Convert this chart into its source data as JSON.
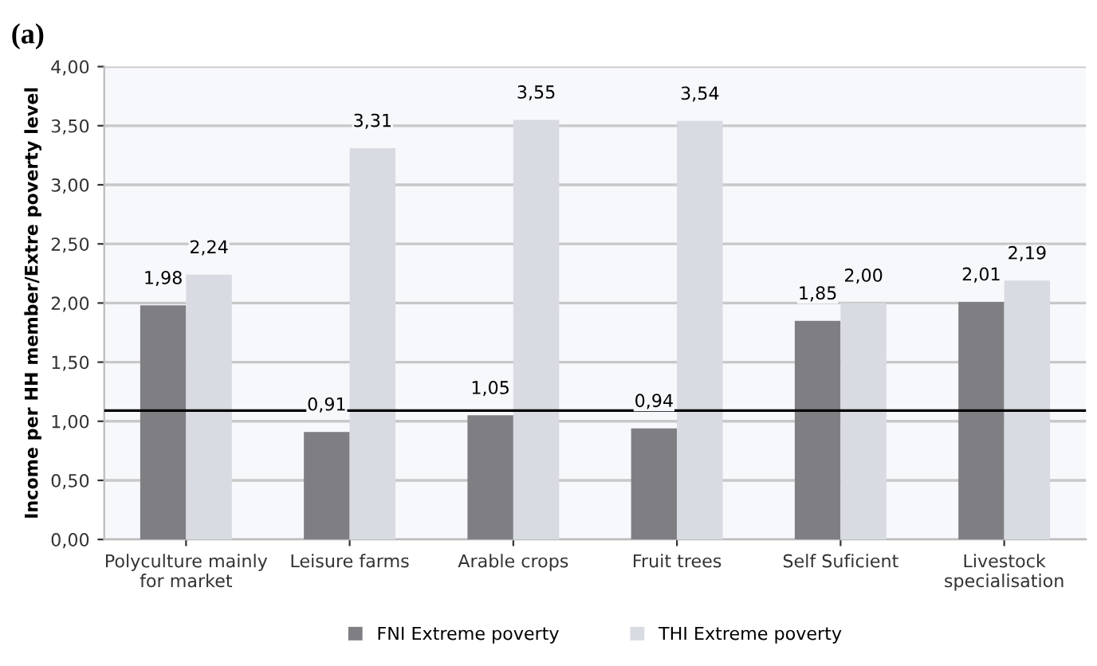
{
  "chart_data": {
    "type": "bar",
    "title": "(a)",
    "ylabel": "Income per HH member/Extre poverty level",
    "categories": [
      "Polyculture mainly\nfor market",
      "Leisure farms",
      "Arable crops",
      "Fruit trees",
      "Self Suficient",
      "Livestock\nspecialisation"
    ],
    "series": [
      {
        "name": "FNI Extreme poverty",
        "color": "#7f7f83",
        "values": [
          1.98,
          0.91,
          1.05,
          0.94,
          1.85,
          2.01
        ],
        "value_labels": [
          "1,98",
          "0,91",
          "1,05",
          "0,94",
          "1,85",
          "2,01"
        ]
      },
      {
        "name": "THI Extreme poverty",
        "color": "#d9dbe2",
        "values": [
          2.24,
          3.31,
          3.55,
          3.54,
          2.0,
          2.19
        ],
        "value_labels": [
          "2,24",
          "3,31",
          "3,55",
          "3,54",
          "2,00",
          "2,19"
        ]
      }
    ],
    "ylim": [
      0,
      4
    ],
    "yticks": [
      {
        "value": 0,
        "label": "0,00"
      },
      {
        "value": 0.5,
        "label": "0,50"
      },
      {
        "value": 1,
        "label": "1,00"
      },
      {
        "value": 1.5,
        "label": "1,50"
      },
      {
        "value": 2,
        "label": "2,00"
      },
      {
        "value": 2.5,
        "label": "2,50"
      },
      {
        "value": 3,
        "label": "3,00"
      },
      {
        "value": 3.5,
        "label": "3,50"
      },
      {
        "value": 4,
        "label": "4,00"
      }
    ],
    "ref_lines": [
      {
        "axis": "y",
        "value": 1.09,
        "color": "#000000"
      }
    ],
    "grid": "y",
    "legend": "bottom"
  }
}
